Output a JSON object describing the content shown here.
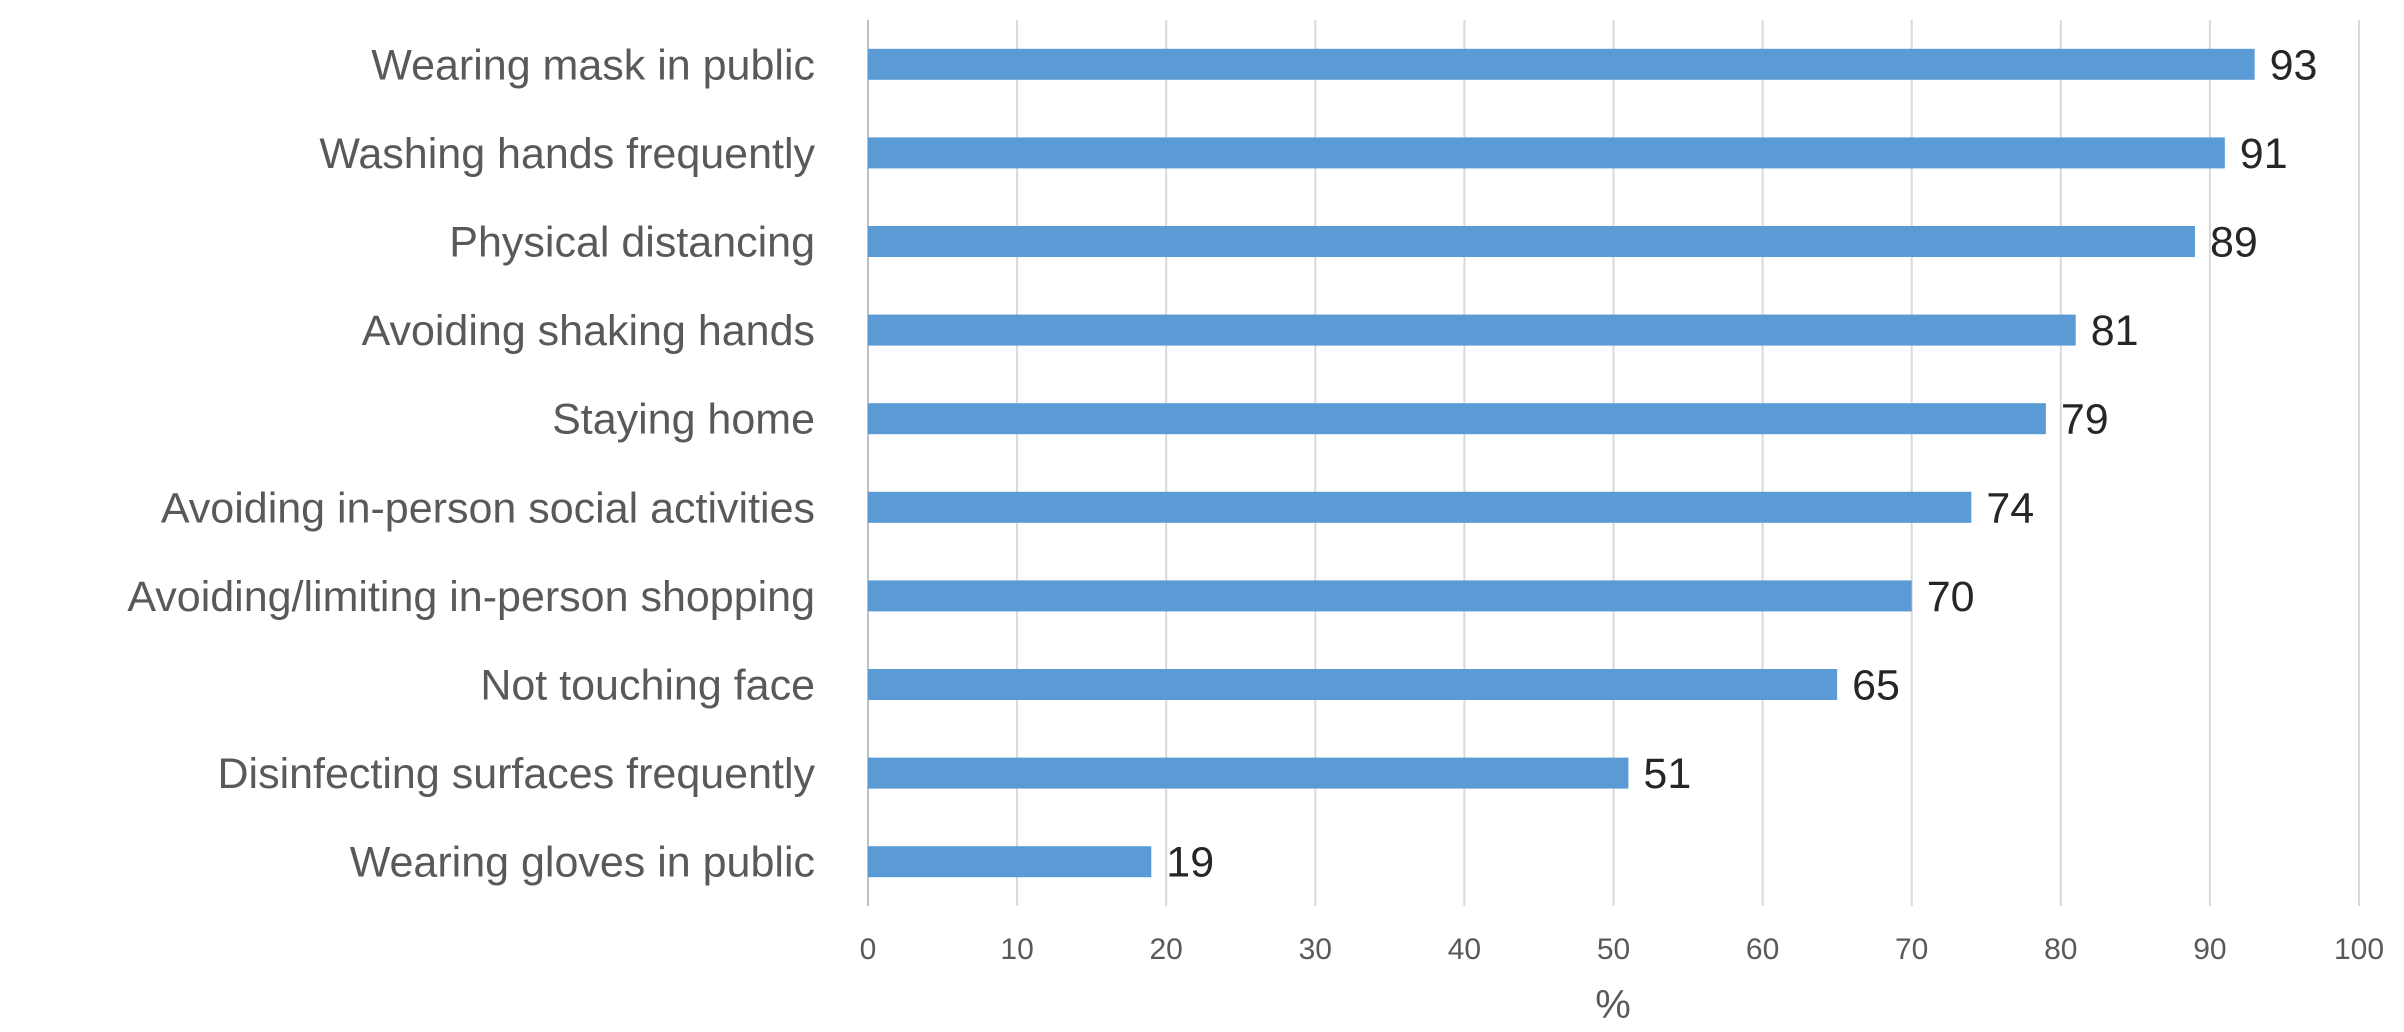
{
  "chart_data": {
    "type": "bar",
    "orientation": "horizontal",
    "categories": [
      "Wearing mask in public",
      "Washing hands frequently",
      "Physical distancing",
      "Avoiding shaking hands",
      "Staying home",
      "Avoiding in-person social activities",
      "Avoiding/limiting in-person shopping",
      "Not touching face",
      "Disinfecting surfaces frequently",
      "Wearing gloves in public"
    ],
    "values": [
      93,
      91,
      89,
      81,
      79,
      74,
      70,
      65,
      51,
      19
    ],
    "data_labels": [
      "93",
      "91",
      "89",
      "81",
      "79",
      "74",
      "70",
      "65",
      "51",
      "19"
    ],
    "xlabel": "%",
    "xlim": [
      0,
      100
    ],
    "x_ticks": [
      "0",
      "10",
      "20",
      "30",
      "40",
      "50",
      "60",
      "70",
      "80",
      "90",
      "100"
    ],
    "grid": true,
    "legend": "none",
    "bar_color": "#5b9bd5"
  }
}
